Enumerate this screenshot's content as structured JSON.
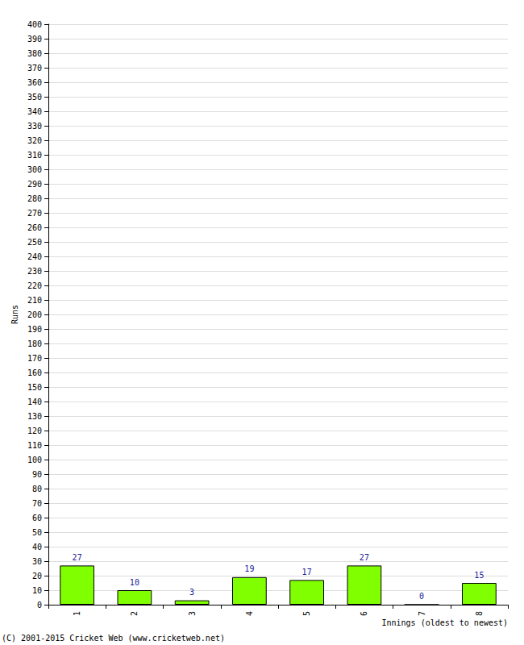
{
  "chart_data": {
    "type": "bar",
    "categories": [
      "1",
      "2",
      "3",
      "4",
      "5",
      "6",
      "7",
      "8"
    ],
    "values": [
      27,
      10,
      3,
      19,
      17,
      27,
      0,
      15
    ],
    "color": "#80ff00",
    "ylim": [
      0,
      400
    ],
    "yticks": [
      0,
      10,
      20,
      30,
      40,
      50,
      60,
      70,
      80,
      90,
      100,
      110,
      120,
      130,
      140,
      150,
      160,
      170,
      180,
      190,
      200,
      210,
      220,
      230,
      240,
      250,
      260,
      270,
      280,
      290,
      300,
      310,
      320,
      330,
      340,
      350,
      360,
      370,
      380,
      390,
      400
    ],
    "ylabel": "Runs",
    "xlabel": "Innings (oldest to newest)",
    "annotation": "(C) 2001-2015 Cricket Web (www.cricketweb.net)",
    "data_labels": true,
    "grid": true
  }
}
